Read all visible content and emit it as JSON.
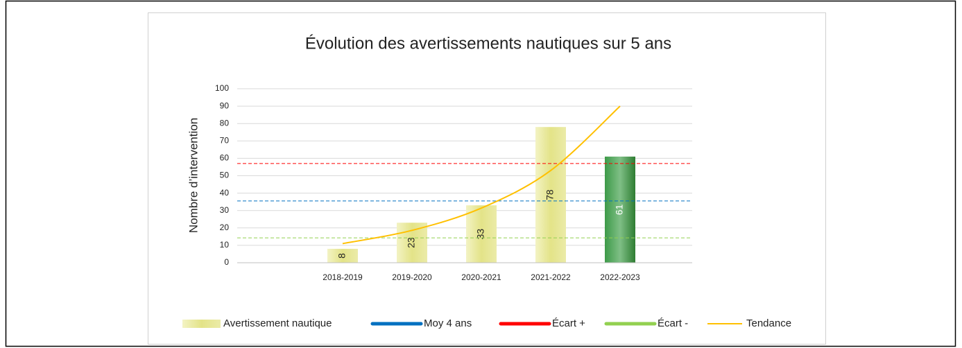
{
  "chart_data": {
    "type": "bar",
    "title": "Évolution des avertissements nautiques sur 5 ans",
    "y_label": "Nombre d’intervention",
    "categories": [
      "2018-2019",
      "2019-2020",
      "2020-2021",
      "2021-2022",
      "2022-2023"
    ],
    "series": [
      {
        "name": "Avertissement nautique",
        "type": "bar",
        "color": "#e6e68a",
        "values": [
          8,
          23,
          33,
          78,
          61
        ],
        "colors": [
          "#e6e68a",
          "#e6e68a",
          "#e6e68a",
          "#e6e68a",
          "#2e8b3a"
        ]
      },
      {
        "name": "Moy 4 ans",
        "type": "hline",
        "color": "#0070c0",
        "value": 35.5
      },
      {
        "name": "Écart +",
        "type": "hline",
        "color": "#ff0000",
        "value": 57
      },
      {
        "name": "Écart -",
        "type": "hline",
        "color": "#92d050",
        "value": 14.3
      },
      {
        "name": "Tendance",
        "type": "line",
        "color": "#ffc000",
        "values": [
          11,
          18.6,
          31.4,
          53,
          90
        ]
      }
    ],
    "ylim": [
      0,
      100
    ],
    "yticks": [
      0,
      10,
      20,
      30,
      40,
      50,
      60,
      70,
      80,
      90,
      100
    ],
    "grid": true
  }
}
